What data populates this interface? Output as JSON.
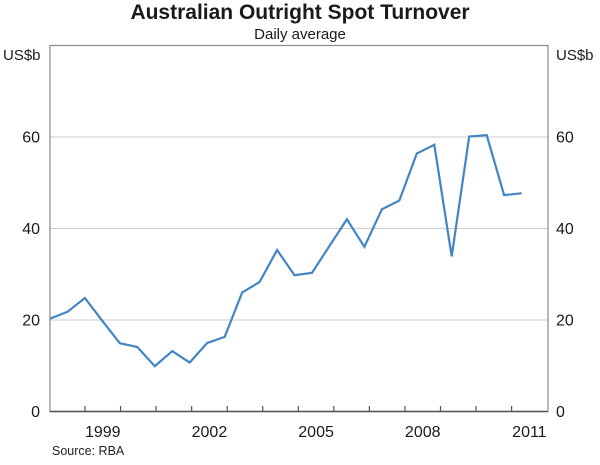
{
  "chart_data": {
    "type": "line",
    "title": "Australian Outright Spot Turnover",
    "subtitle": "Daily average",
    "y_axis_label_left": "US$b",
    "y_axis_label_right": "US$b",
    "source": "Source: RBA",
    "ylim": [
      0,
      80
    ],
    "y_ticks": [
      0,
      20,
      40,
      60
    ],
    "y_tick_labels": [
      "0",
      "20",
      "40",
      "60"
    ],
    "x_tick_years_labeled": [
      "1999",
      "2002",
      "2005",
      "2008",
      "2011"
    ],
    "x_axis_span": {
      "start_year": 1998,
      "end_year": 2012,
      "tick_every_years": 1
    },
    "grid": "horizontal-only",
    "legend": "none",
    "line_color": "#4285c4",
    "grid_color": "#cdcdcd",
    "frame_color": "#8a8a8a",
    "axis_color": "#555555",
    "series": [
      {
        "name": "Daily average outright spot turnover (US$b)",
        "frequency": "semiannual",
        "periods": [
          "1997H2",
          "1998H1",
          "1998H2",
          "1999H1",
          "1999H2",
          "2000H1",
          "2000H2",
          "2001H1",
          "2001H2",
          "2002H1",
          "2002H2",
          "2003H1",
          "2003H2",
          "2004H1",
          "2004H2",
          "2005H1",
          "2005H2",
          "2006H1",
          "2006H2",
          "2007H1",
          "2007H2",
          "2008H1",
          "2008H2",
          "2009H1",
          "2009H2",
          "2010H1",
          "2010H2",
          "2011H1"
        ],
        "values": [
          20.3,
          21.8,
          24.8,
          19.8,
          14.9,
          14.1,
          9.9,
          13.2,
          10.7,
          15.0,
          16.3,
          26.0,
          28.3,
          35.3,
          29.8,
          30.3,
          36.2,
          42.0,
          36.0,
          44.2,
          46.1,
          56.4,
          58.3,
          33.9,
          60.1,
          60.4,
          47.3,
          47.7
        ]
      }
    ]
  }
}
